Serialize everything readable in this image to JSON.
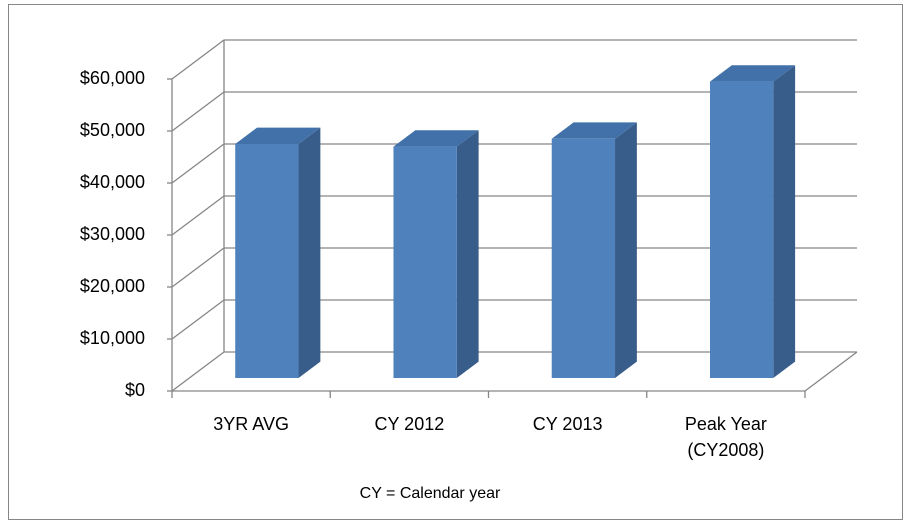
{
  "chart_data": {
    "type": "bar3d",
    "categories": [
      "3YR AVG",
      "CY 2012",
      "CY 2013",
      "Peak Year (CY2008)"
    ],
    "values": [
      45000,
      44500,
      46000,
      57000
    ],
    "color": "#4f81bd",
    "ylim": [
      0,
      60000
    ],
    "yticks": [
      {
        "value": 0,
        "label": "$0"
      },
      {
        "value": 10000,
        "label": "$10,000"
      },
      {
        "value": 20000,
        "label": "$20,000"
      },
      {
        "value": 30000,
        "label": "$30,000"
      },
      {
        "value": 40000,
        "label": "$40,000"
      },
      {
        "value": 50000,
        "label": "$50,000"
      },
      {
        "value": 60000,
        "label": "$60,000"
      }
    ],
    "grid": true,
    "annotation": "CY = Calendar year"
  }
}
